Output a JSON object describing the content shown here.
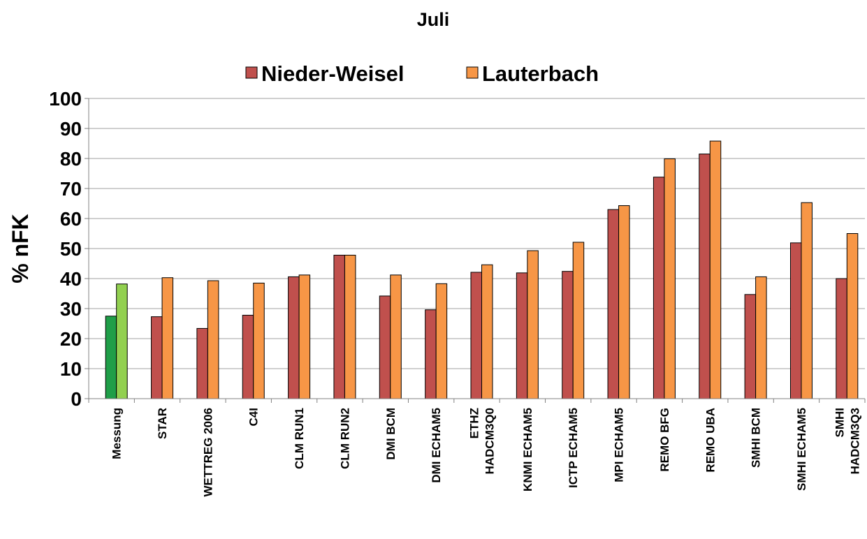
{
  "chart_data": {
    "type": "bar",
    "title": "Juli",
    "y_label": "% nFK",
    "categories": [
      "Messung",
      "STAR",
      "WETTREG 2006",
      "C4I",
      "CLM RUN1",
      "CLM RUN2",
      "DMI BCM",
      "DMI ECHAM5",
      [
        "ETHZ",
        "HADCM3Q0"
      ],
      "KNMI ECHAM5",
      "ICTP ECHAM5",
      "MPI ECHAM5",
      "REMO BFG",
      "REMO UBA",
      "SMHI BCM",
      "SMHI ECHAM5",
      [
        "SMHI",
        "HADCM3Q3"
      ]
    ],
    "series": [
      {
        "name": "Nieder-Weisel",
        "color": "#c0504d",
        "colors": [
          "#1f9e48",
          "#c0504d",
          "#c0504d",
          "#c0504d",
          "#c0504d",
          "#c0504d",
          "#c0504d",
          "#c0504d",
          "#c0504d",
          "#c0504d",
          "#c0504d",
          "#c0504d",
          "#c0504d",
          "#c0504d",
          "#c0504d",
          "#c0504d",
          "#c0504d"
        ],
        "values": [
          27.5,
          27.3,
          23.4,
          27.8,
          40.6,
          47.8,
          34.2,
          29.6,
          42.1,
          41.9,
          42.4,
          63.0,
          73.8,
          81.5,
          34.7,
          51.9,
          40.0
        ]
      },
      {
        "name": "Lauterbach",
        "color": "#f79646",
        "colors": [
          "#92d050",
          "#f79646",
          "#f79646",
          "#f79646",
          "#f79646",
          "#f79646",
          "#f79646",
          "#f79646",
          "#f79646",
          "#f79646",
          "#f79646",
          "#f79646",
          "#f79646",
          "#f79646",
          "#f79646",
          "#f79646",
          "#f79646"
        ],
        "values": [
          38.2,
          40.3,
          39.3,
          38.5,
          41.2,
          47.8,
          41.2,
          38.3,
          44.6,
          49.3,
          52.1,
          64.3,
          79.9,
          85.8,
          40.6,
          65.3,
          55.0
        ]
      }
    ],
    "ylim": [
      0,
      100
    ],
    "yticks": [
      0,
      10,
      20,
      30,
      40,
      50,
      60,
      70,
      80,
      90,
      100
    ],
    "grid": true,
    "legend": "top"
  }
}
